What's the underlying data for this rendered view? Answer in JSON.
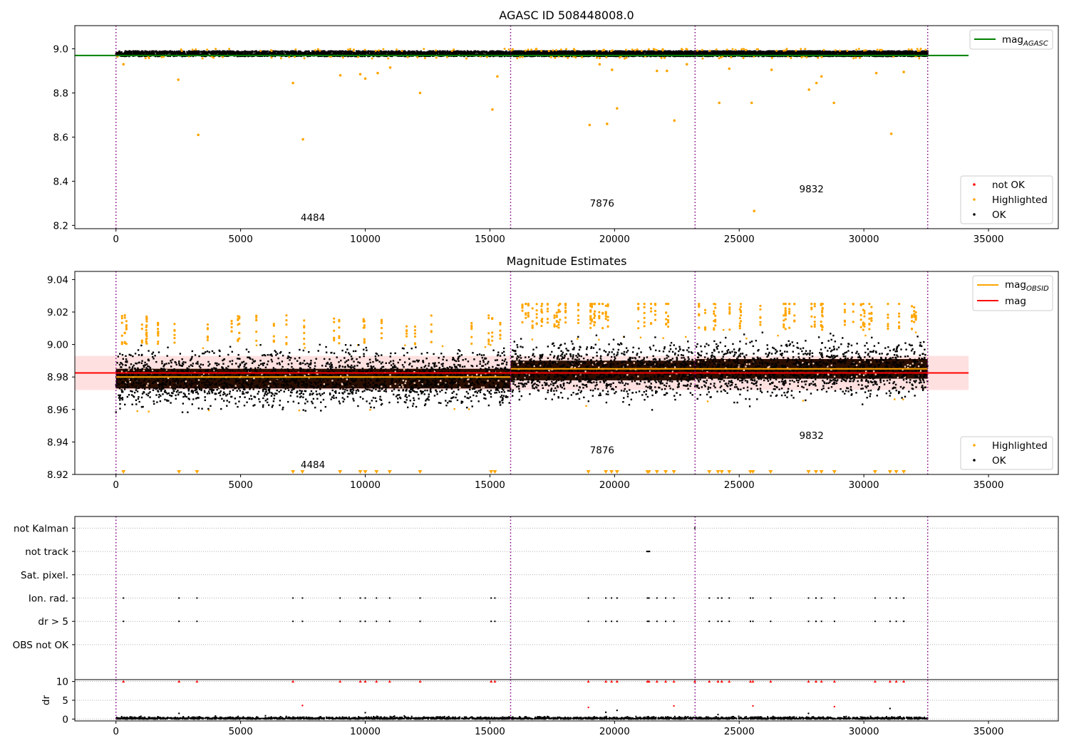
{
  "chart_data": [
    {
      "type": "scatter",
      "title": "AGASC ID 508448008.0",
      "xlim": [
        -1650,
        37800
      ],
      "ylim": [
        8.185,
        9.105
      ],
      "xticks": [
        0,
        5000,
        10000,
        15000,
        20000,
        25000,
        30000,
        35000
      ],
      "yticks": [
        8.2,
        8.4,
        8.6,
        8.8,
        9.0
      ],
      "ytick_labels": [
        "8.2",
        "8.4",
        "8.6",
        "8.8",
        "9.0"
      ],
      "grid": false,
      "obs_boundaries": [
        0,
        15830,
        23230,
        32560
      ],
      "obs_labels": [
        {
          "text": "4484",
          "x": 7900,
          "y": 8.22
        },
        {
          "text": "7876",
          "x": 19500,
          "y": 8.285
        },
        {
          "text": "9832",
          "x": 27900,
          "y": 8.35
        }
      ],
      "mag_agasc": 8.97,
      "mag_agasc_xrange": [
        -1650,
        34200
      ],
      "band_center": 8.978,
      "band_halfwidth": 0.012,
      "highlighted_outliers": [
        [
          300,
          8.93
        ],
        [
          2500,
          8.86
        ],
        [
          3300,
          8.61
        ],
        [
          7100,
          8.845
        ],
        [
          7500,
          8.59
        ],
        [
          9000,
          8.88
        ],
        [
          9800,
          8.885
        ],
        [
          10000,
          8.865
        ],
        [
          10500,
          8.89
        ],
        [
          11000,
          8.915
        ],
        [
          12200,
          8.8
        ],
        [
          15100,
          8.725
        ],
        [
          15300,
          8.875
        ],
        [
          19000,
          8.655
        ],
        [
          19400,
          8.93
        ],
        [
          19700,
          8.66
        ],
        [
          19900,
          8.905
        ],
        [
          20100,
          8.73
        ],
        [
          21700,
          8.9
        ],
        [
          22100,
          8.9
        ],
        [
          22400,
          8.675
        ],
        [
          22900,
          8.93
        ],
        [
          24200,
          8.755
        ],
        [
          24600,
          8.91
        ],
        [
          25500,
          8.755
        ],
        [
          25600,
          8.265
        ],
        [
          26300,
          8.905
        ],
        [
          27800,
          8.815
        ],
        [
          28100,
          8.845
        ],
        [
          28300,
          8.875
        ],
        [
          28800,
          8.755
        ],
        [
          30500,
          8.89
        ],
        [
          31100,
          8.615
        ],
        [
          31600,
          8.895
        ]
      ],
      "legend": {
        "top": [
          {
            "label": "mag",
            "sub": "AGASC",
            "color": "#008000"
          }
        ],
        "bottom": [
          {
            "label": "not OK",
            "color": "#ff0000"
          },
          {
            "label": "Highlighted",
            "color": "#ffa500"
          },
          {
            "label": "OK",
            "color": "#000000"
          }
        ]
      }
    },
    {
      "type": "scatter",
      "title": "Magnitude Estimates",
      "xlim": [
        -1650,
        37800
      ],
      "ylim": [
        8.92,
        9.045
      ],
      "xticks": [
        0,
        5000,
        10000,
        15000,
        20000,
        25000,
        30000,
        35000
      ],
      "yticks": [
        8.92,
        8.94,
        8.96,
        8.98,
        9.0,
        9.02,
        9.04
      ],
      "ytick_labels": [
        "8.92",
        "8.94",
        "8.96",
        "8.98",
        "9.00",
        "9.02",
        "9.04"
      ],
      "grid": false,
      "obs_boundaries": [
        0,
        15830,
        23230,
        32560
      ],
      "obs_labels": [
        {
          "text": "4484",
          "x": 7900,
          "y": 8.924
        },
        {
          "text": "7876",
          "x": 19500,
          "y": 8.933
        },
        {
          "text": "9832",
          "x": 27900,
          "y": 8.942
        }
      ],
      "mag": 8.9825,
      "mag_band": [
        8.972,
        8.993
      ],
      "mag_obsid": [
        {
          "x": [
            0,
            15830
          ],
          "y": 8.98
        },
        {
          "x": [
            15830,
            32560
          ],
          "y": 8.985
        }
      ],
      "segment_means": [
        {
          "x": [
            0,
            15830
          ],
          "y": 8.979,
          "spread": 0.011,
          "tail": 0.021
        },
        {
          "x": [
            15830,
            23230
          ],
          "y": 8.984,
          "spread": 0.011,
          "tail": 0.026
        },
        {
          "x": [
            23230,
            32560
          ],
          "y": 8.985,
          "spread": 0.011,
          "tail": 0.024
        }
      ],
      "legend": {
        "top": [
          {
            "label": "mag",
            "sub": "OBSID",
            "color": "#ffa500"
          },
          {
            "label": "mag",
            "color": "#ff0000"
          }
        ],
        "bottom": [
          {
            "label": "Highlighted",
            "color": "#ffa500"
          },
          {
            "label": "OK",
            "color": "#000000"
          }
        ]
      }
    },
    {
      "type": "scatter",
      "title": "",
      "xlim": [
        -1650,
        37800
      ],
      "ylim": [
        -0.5,
        6.5
      ],
      "xticks": [
        0,
        5000,
        10000,
        15000,
        20000,
        25000,
        30000,
        35000
      ],
      "obs_boundaries": [
        0,
        15830,
        23230,
        32560
      ],
      "flag_rows": [
        "not Kalman",
        "not track",
        "Sat. pixel.",
        "Ion. rad.",
        "dr > 5",
        "OBS not OK"
      ],
      "grid": true,
      "flag_points": {
        "not Kalman": [
          23220
        ],
        "not track": [
          21300,
          21320,
          21340,
          21360,
          21380,
          21400
        ],
        "Sat. pixel.": [],
        "Ion. rad.": [
          300,
          2530,
          3250,
          7100,
          7480,
          8990,
          9800,
          10000,
          10450,
          10980,
          12200,
          15050,
          15200,
          18950,
          19650,
          19880,
          20100,
          21320,
          21380,
          21700,
          22050,
          22380,
          23800,
          24150,
          24300,
          24600,
          25450,
          25550,
          26260,
          27780,
          28080,
          28300,
          28820,
          30450,
          31050,
          31300,
          31600
        ],
        "dr > 5": [
          300,
          2530,
          3250,
          7100,
          7480,
          8990,
          9800,
          10000,
          10450,
          10980,
          12200,
          15050,
          15200,
          18950,
          19650,
          19880,
          20100,
          21320,
          21380,
          21700,
          22050,
          22380,
          23800,
          24150,
          24300,
          24600,
          25450,
          25550,
          26260,
          27780,
          28080,
          28300,
          28820,
          30450,
          31050,
          31300,
          31600
        ],
        "OBS not OK": []
      }
    },
    {
      "type": "scatter",
      "title": "",
      "ylabel": "dr",
      "xlim": [
        -1650,
        37800
      ],
      "ylim": [
        -0.5,
        10.5
      ],
      "xticks": [
        0,
        5000,
        10000,
        15000,
        20000,
        25000,
        30000,
        35000
      ],
      "xtick_labels": [
        "0",
        "5000",
        "10000",
        "15000",
        "20000",
        "25000",
        "30000",
        "35000"
      ],
      "yticks": [
        0,
        5,
        10
      ],
      "ytick_labels": [
        "0",
        "5",
        "10"
      ],
      "obs_boundaries": [
        0,
        15830,
        23230,
        32560
      ],
      "grid": true,
      "dr_clipped": [
        300,
        2530,
        3250,
        7100,
        8990,
        9800,
        10000,
        10450,
        10980,
        12200,
        15050,
        15200,
        18950,
        19650,
        19880,
        20100,
        21320,
        21380,
        21700,
        22050,
        22380,
        23220,
        23800,
        24150,
        24300,
        24600,
        25450,
        25550,
        26260,
        27780,
        28080,
        28300,
        28820,
        30450,
        31050,
        31300,
        31600
      ],
      "dr_outliers": [
        [
          7480,
          3.6
        ],
        [
          18950,
          3.1
        ],
        [
          19650,
          1.8
        ],
        [
          20100,
          2.3
        ],
        [
          22380,
          3.5
        ],
        [
          24150,
          1.2
        ],
        [
          25550,
          3.5
        ],
        [
          27780,
          1.5
        ],
        [
          28820,
          3.3
        ],
        [
          31050,
          2.8
        ],
        [
          10000,
          1.7
        ],
        [
          2530,
          1.5
        ]
      ]
    }
  ]
}
